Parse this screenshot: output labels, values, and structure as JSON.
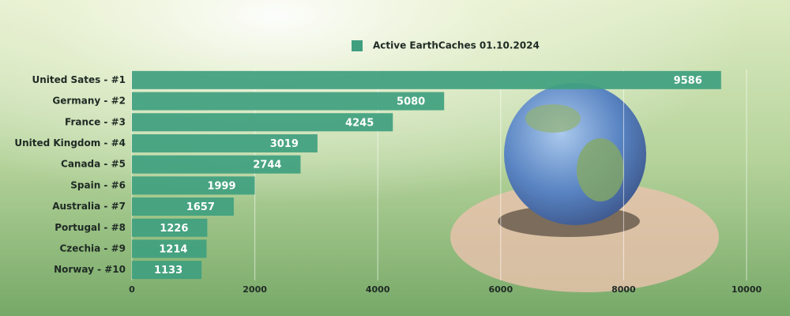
{
  "chart_data": {
    "type": "bar",
    "orientation": "horizontal",
    "categories": [
      "United Sates - #1",
      "Germany - #2",
      "France - #3",
      "United Kingdom - #4",
      "Canada - #5",
      "Spain - #6",
      "Australia - #7",
      "Portugal - #8",
      "Czechia - #9",
      "Norway - #10"
    ],
    "series": [
      {
        "name": "Active EarthCaches 01.10.2024",
        "color": "#3f9f7f",
        "values": [
          9586,
          5080,
          4245,
          3019,
          2744,
          1999,
          1657,
          1226,
          1214,
          1133
        ]
      }
    ],
    "xlim": [
      0,
      10000
    ],
    "xticks": [
      0,
      2000,
      4000,
      6000,
      8000,
      10000
    ],
    "grid": true,
    "legend": "top"
  }
}
